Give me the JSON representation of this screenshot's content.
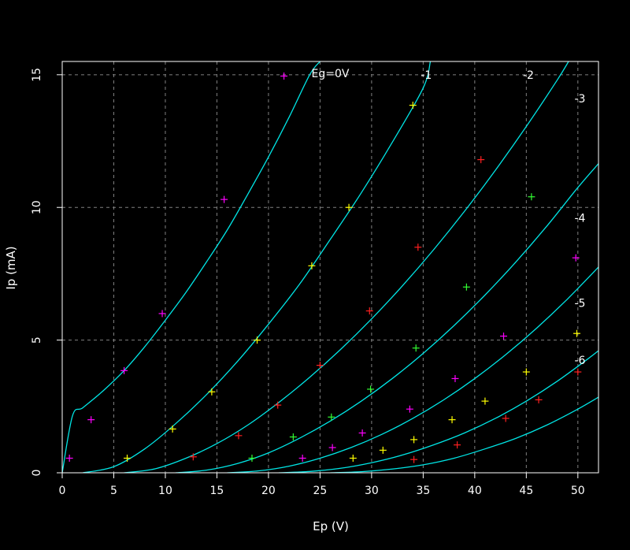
{
  "chart_data": {
    "type": "scatter",
    "title": "",
    "xlabel": "Ep (V)",
    "ylabel": "Ip (mA)",
    "xlim": [
      0,
      52
    ],
    "ylim": [
      0,
      15.5
    ],
    "x_ticks": [
      "0",
      "5",
      "10",
      "15",
      "20",
      "25",
      "30",
      "35",
      "40",
      "45",
      "50"
    ],
    "y_ticks": [
      "0",
      "5",
      "10",
      "15"
    ],
    "grid": true,
    "colors": {
      "background": "#000000",
      "axes": "#ffffff",
      "grid": "#808080",
      "curve": "#00e5e5"
    },
    "curves": [
      {
        "label": "Eg=0V",
        "label_pos": [
          26,
          15.05
        ],
        "points": [
          [
            0,
            0
          ],
          [
            1,
            2.15
          ],
          [
            2,
            2.45
          ],
          [
            4,
            3.1
          ],
          [
            6,
            3.85
          ],
          [
            8,
            4.75
          ],
          [
            10,
            5.75
          ],
          [
            12,
            6.8
          ],
          [
            14,
            7.95
          ],
          [
            16,
            9.15
          ],
          [
            18,
            10.5
          ],
          [
            20,
            11.9
          ],
          [
            22,
            13.4
          ],
          [
            24,
            15.0
          ],
          [
            25,
            15.5
          ]
        ]
      },
      {
        "label": "-1",
        "label_pos": [
          35.3,
          15.0
        ],
        "points": [
          [
            2,
            0
          ],
          [
            5,
            0.23
          ],
          [
            8,
            0.9
          ],
          [
            11,
            1.85
          ],
          [
            14,
            2.95
          ],
          [
            17,
            4.2
          ],
          [
            20,
            5.6
          ],
          [
            23,
            7.1
          ],
          [
            26,
            8.8
          ],
          [
            29,
            10.55
          ],
          [
            32,
            12.45
          ],
          [
            35,
            14.5
          ],
          [
            35.7,
            15.5
          ]
        ]
      },
      {
        "label": "-2",
        "label_pos": [
          45.2,
          15.0
        ],
        "points": [
          [
            6,
            0
          ],
          [
            9,
            0.15
          ],
          [
            12,
            0.55
          ],
          [
            15,
            1.1
          ],
          [
            18,
            1.8
          ],
          [
            21,
            2.65
          ],
          [
            24,
            3.6
          ],
          [
            27,
            4.65
          ],
          [
            30,
            5.8
          ],
          [
            33,
            7.05
          ],
          [
            36,
            8.4
          ],
          [
            39,
            9.85
          ],
          [
            42,
            11.4
          ],
          [
            45,
            13.05
          ],
          [
            48,
            14.8
          ],
          [
            49.1,
            15.5
          ]
        ]
      },
      {
        "label": "-3",
        "label_pos": [
          50.2,
          14.1
        ],
        "points": [
          [
            11,
            0
          ],
          [
            14,
            0.1
          ],
          [
            17,
            0.35
          ],
          [
            20,
            0.75
          ],
          [
            23,
            1.3
          ],
          [
            26,
            1.95
          ],
          [
            29,
            2.7
          ],
          [
            32,
            3.55
          ],
          [
            35,
            4.5
          ],
          [
            38,
            5.55
          ],
          [
            41,
            6.7
          ],
          [
            44,
            7.95
          ],
          [
            47,
            9.3
          ],
          [
            50,
            10.75
          ],
          [
            52,
            11.65
          ]
        ]
      },
      {
        "label": "-4",
        "label_pos": [
          50.2,
          9.6
        ],
        "points": [
          [
            16,
            0
          ],
          [
            19,
            0.07
          ],
          [
            22,
            0.25
          ],
          [
            25,
            0.55
          ],
          [
            28,
            0.95
          ],
          [
            31,
            1.45
          ],
          [
            34,
            2.05
          ],
          [
            37,
            2.75
          ],
          [
            40,
            3.55
          ],
          [
            43,
            4.45
          ],
          [
            46,
            5.45
          ],
          [
            49,
            6.55
          ],
          [
            52,
            7.75
          ]
        ]
      },
      {
        "label": "-5",
        "label_pos": [
          50.2,
          6.4
        ],
        "points": [
          [
            21,
            0
          ],
          [
            24,
            0.05
          ],
          [
            27,
            0.17
          ],
          [
            30,
            0.38
          ],
          [
            33,
            0.67
          ],
          [
            36,
            1.05
          ],
          [
            39,
            1.5
          ],
          [
            42,
            2.05
          ],
          [
            45,
            2.7
          ],
          [
            48,
            3.45
          ],
          [
            51,
            4.3
          ],
          [
            52,
            4.6
          ]
        ]
      },
      {
        "label": "-6",
        "label_pos": [
          50.2,
          4.25
        ],
        "points": [
          [
            26,
            0
          ],
          [
            29,
            0.04
          ],
          [
            32,
            0.14
          ],
          [
            35,
            0.3
          ],
          [
            38,
            0.55
          ],
          [
            41,
            0.9
          ],
          [
            44,
            1.3
          ],
          [
            47,
            1.8
          ],
          [
            50,
            2.4
          ],
          [
            52,
            2.85
          ]
        ]
      }
    ],
    "measured_points": [
      {
        "x": 0.7,
        "y": 0.55,
        "color": "#ff00ff"
      },
      {
        "x": 2.8,
        "y": 2.0,
        "color": "#ff00ff"
      },
      {
        "x": 6.0,
        "y": 3.85,
        "color": "#ff00ff"
      },
      {
        "x": 9.7,
        "y": 6.0,
        "color": "#ff00ff"
      },
      {
        "x": 15.7,
        "y": 10.3,
        "color": "#ff00ff"
      },
      {
        "x": 21.5,
        "y": 14.95,
        "color": "#ff00ff"
      },
      {
        "x": 6.3,
        "y": 0.55,
        "color": "#ffff00"
      },
      {
        "x": 10.7,
        "y": 1.65,
        "color": "#ffff00"
      },
      {
        "x": 14.5,
        "y": 3.05,
        "color": "#ffff00"
      },
      {
        "x": 18.9,
        "y": 5.0,
        "color": "#ffff00"
      },
      {
        "x": 24.2,
        "y": 7.8,
        "color": "#ffff00"
      },
      {
        "x": 27.8,
        "y": 10.0,
        "color": "#ffff00"
      },
      {
        "x": 34.0,
        "y": 13.85,
        "color": "#ffff00"
      },
      {
        "x": 12.7,
        "y": 0.6,
        "color": "#ff2020"
      },
      {
        "x": 17.1,
        "y": 1.4,
        "color": "#ff2020"
      },
      {
        "x": 20.9,
        "y": 2.55,
        "color": "#ff2020"
      },
      {
        "x": 25.0,
        "y": 4.05,
        "color": "#ff2020"
      },
      {
        "x": 29.8,
        "y": 6.1,
        "color": "#ff2020"
      },
      {
        "x": 34.5,
        "y": 8.5,
        "color": "#ff2020"
      },
      {
        "x": 40.6,
        "y": 11.8,
        "color": "#ff2020"
      },
      {
        "x": 18.4,
        "y": 0.55,
        "color": "#33ff33"
      },
      {
        "x": 22.4,
        "y": 1.35,
        "color": "#33ff33"
      },
      {
        "x": 26.1,
        "y": 2.1,
        "color": "#33ff33"
      },
      {
        "x": 29.9,
        "y": 3.15,
        "color": "#33ff33"
      },
      {
        "x": 34.3,
        "y": 4.7,
        "color": "#33ff33"
      },
      {
        "x": 39.2,
        "y": 7.0,
        "color": "#33ff33"
      },
      {
        "x": 45.5,
        "y": 10.4,
        "color": "#33ff33"
      },
      {
        "x": 23.3,
        "y": 0.55,
        "color": "#ff00ff"
      },
      {
        "x": 26.2,
        "y": 0.95,
        "color": "#ff00ff"
      },
      {
        "x": 29.1,
        "y": 1.5,
        "color": "#ff00ff"
      },
      {
        "x": 33.7,
        "y": 2.4,
        "color": "#ff00ff"
      },
      {
        "x": 38.1,
        "y": 3.55,
        "color": "#ff00ff"
      },
      {
        "x": 42.8,
        "y": 5.15,
        "color": "#ff00ff"
      },
      {
        "x": 49.8,
        "y": 8.1,
        "color": "#ff00ff"
      },
      {
        "x": 28.2,
        "y": 0.55,
        "color": "#ffff00"
      },
      {
        "x": 31.1,
        "y": 0.85,
        "color": "#ffff00"
      },
      {
        "x": 34.1,
        "y": 1.25,
        "color": "#ffff00"
      },
      {
        "x": 37.8,
        "y": 2.0,
        "color": "#ffff00"
      },
      {
        "x": 41.0,
        "y": 2.7,
        "color": "#ffff00"
      },
      {
        "x": 45.0,
        "y": 3.8,
        "color": "#ffff00"
      },
      {
        "x": 49.9,
        "y": 5.25,
        "color": "#ffff00"
      },
      {
        "x": 34.1,
        "y": 0.5,
        "color": "#ff2020"
      },
      {
        "x": 38.3,
        "y": 1.05,
        "color": "#ff2020"
      },
      {
        "x": 43.0,
        "y": 2.05,
        "color": "#ff2020"
      },
      {
        "x": 46.2,
        "y": 2.75,
        "color": "#ff2020"
      },
      {
        "x": 50.0,
        "y": 3.8,
        "color": "#ff2020"
      }
    ]
  }
}
